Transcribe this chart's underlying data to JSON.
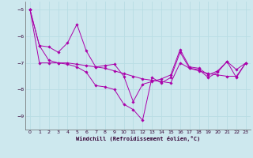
{
  "xlabel": "Windchill (Refroidissement éolien,°C)",
  "bg_color": "#cde8ee",
  "line_color": "#aa00aa",
  "grid_color": "#b8dde4",
  "ylim": [
    -9.5,
    -4.7
  ],
  "xlim": [
    -0.5,
    23.5
  ],
  "yticks": [
    -9,
    -8,
    -7,
    -6,
    -5
  ],
  "xticks": [
    0,
    1,
    2,
    3,
    4,
    5,
    6,
    7,
    8,
    9,
    10,
    11,
    12,
    13,
    14,
    15,
    16,
    17,
    18,
    19,
    20,
    21,
    22,
    23
  ],
  "series": [
    {
      "points": [
        [
          0,
          -5.0
        ],
        [
          1,
          -6.35
        ],
        [
          2,
          -6.9
        ],
        [
          3,
          -7.0
        ],
        [
          4,
          -7.05
        ],
        [
          5,
          -7.15
        ],
        [
          6,
          -7.35
        ],
        [
          7,
          -7.85
        ],
        [
          8,
          -7.9
        ],
        [
          9,
          -8.0
        ],
        [
          10,
          -8.55
        ],
        [
          11,
          -8.75
        ],
        [
          12,
          -9.15
        ],
        [
          13,
          -7.55
        ],
        [
          14,
          -7.75
        ],
        [
          15,
          -7.55
        ],
        [
          16,
          -6.6
        ],
        [
          17,
          -7.2
        ],
        [
          18,
          -7.25
        ],
        [
          19,
          -7.55
        ],
        [
          20,
          -7.35
        ],
        [
          21,
          -6.95
        ],
        [
          22,
          -7.25
        ],
        [
          23,
          -7.0
        ]
      ]
    },
    {
      "points": [
        [
          0,
          -5.0
        ],
        [
          1,
          -6.35
        ],
        [
          2,
          -6.4
        ],
        [
          3,
          -6.6
        ],
        [
          4,
          -6.25
        ],
        [
          5,
          -5.55
        ],
        [
          6,
          -6.55
        ],
        [
          7,
          -7.15
        ],
        [
          8,
          -7.1
        ],
        [
          9,
          -7.05
        ],
        [
          10,
          -7.5
        ],
        [
          11,
          -8.45
        ],
        [
          12,
          -7.8
        ],
        [
          13,
          -7.7
        ],
        [
          14,
          -7.6
        ],
        [
          15,
          -7.45
        ],
        [
          16,
          -6.5
        ],
        [
          17,
          -7.15
        ],
        [
          18,
          -7.2
        ],
        [
          19,
          -7.45
        ],
        [
          20,
          -7.3
        ],
        [
          21,
          -6.95
        ],
        [
          22,
          -7.55
        ],
        [
          23,
          -7.0
        ]
      ]
    },
    {
      "points": [
        [
          0,
          -5.0
        ],
        [
          1,
          -7.0
        ],
        [
          2,
          -7.0
        ],
        [
          3,
          -7.0
        ],
        [
          4,
          -7.0
        ],
        [
          5,
          -7.05
        ],
        [
          6,
          -7.1
        ],
        [
          7,
          -7.15
        ],
        [
          8,
          -7.2
        ],
        [
          9,
          -7.3
        ],
        [
          10,
          -7.4
        ],
        [
          11,
          -7.5
        ],
        [
          12,
          -7.6
        ],
        [
          13,
          -7.65
        ],
        [
          14,
          -7.7
        ],
        [
          15,
          -7.75
        ],
        [
          16,
          -7.0
        ],
        [
          17,
          -7.2
        ],
        [
          18,
          -7.3
        ],
        [
          19,
          -7.4
        ],
        [
          20,
          -7.45
        ],
        [
          21,
          -7.5
        ],
        [
          22,
          -7.5
        ],
        [
          23,
          -7.0
        ]
      ]
    }
  ]
}
